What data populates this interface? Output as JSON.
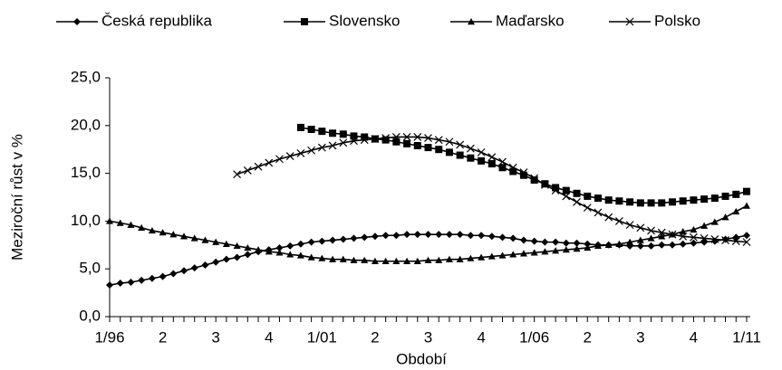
{
  "chart_data": {
    "type": "line",
    "x_label": "Období",
    "y_label": "Meziroční růst v %",
    "categories": [
      "1/96",
      null,
      null,
      null,
      null,
      "2",
      null,
      null,
      null,
      null,
      "3",
      null,
      null,
      null,
      null,
      "4",
      null,
      null,
      null,
      null,
      "1/01",
      null,
      null,
      null,
      null,
      "2",
      null,
      null,
      null,
      null,
      "3",
      null,
      null,
      null,
      null,
      "4",
      null,
      null,
      null,
      null,
      "1/06",
      null,
      null,
      null,
      null,
      "2",
      null,
      null,
      null,
      null,
      "3",
      null,
      null,
      null,
      null,
      "4",
      null,
      null,
      null,
      null,
      "1/11"
    ],
    "series": [
      {
        "name": "Česká republika",
        "color": "#000000",
        "marker": "diamond",
        "values": [
          3.3,
          3.5,
          3.6,
          3.8,
          4.0,
          4.2,
          4.5,
          4.8,
          5.1,
          5.4,
          5.7,
          6.0,
          6.2,
          6.5,
          6.8,
          7.0,
          7.2,
          7.4,
          7.6,
          7.8,
          7.9,
          8.0,
          8.1,
          8.2,
          8.3,
          8.4,
          8.5,
          8.5,
          8.6,
          8.6,
          8.6,
          8.6,
          8.6,
          8.6,
          8.5,
          8.5,
          8.4,
          8.3,
          8.2,
          8.0,
          7.9,
          7.8,
          7.8,
          7.7,
          7.7,
          7.6,
          7.5,
          7.5,
          7.5,
          7.4,
          7.4,
          7.4,
          7.5,
          7.5,
          7.6,
          7.7,
          7.8,
          7.9,
          8.1,
          8.3,
          8.5
        ]
      },
      {
        "name": "Slovensko",
        "color": "#000000",
        "marker": "square",
        "values": [
          null,
          null,
          null,
          null,
          null,
          null,
          null,
          null,
          null,
          null,
          null,
          null,
          null,
          null,
          null,
          null,
          null,
          null,
          19.8,
          19.6,
          19.4,
          19.2,
          19.1,
          18.9,
          18.8,
          18.6,
          18.5,
          18.3,
          18.1,
          17.9,
          17.7,
          17.5,
          17.2,
          16.9,
          16.6,
          16.3,
          16.0,
          15.6,
          15.2,
          14.8,
          14.3,
          13.9,
          13.5,
          13.2,
          12.9,
          12.6,
          12.4,
          12.2,
          12.1,
          12.0,
          11.9,
          11.9,
          11.9,
          12.0,
          12.1,
          12.2,
          12.3,
          12.4,
          12.6,
          12.8,
          13.1
        ]
      },
      {
        "name": "Maďarsko",
        "color": "#000000",
        "marker": "triangle",
        "values": [
          10.0,
          9.8,
          9.6,
          9.3,
          9.0,
          8.8,
          8.6,
          8.4,
          8.2,
          8.0,
          7.8,
          7.6,
          7.4,
          7.2,
          7.0,
          6.8,
          6.7,
          6.5,
          6.4,
          6.2,
          6.1,
          6.0,
          6.0,
          5.9,
          5.9,
          5.8,
          5.8,
          5.8,
          5.8,
          5.8,
          5.9,
          5.9,
          6.0,
          6.0,
          6.1,
          6.2,
          6.3,
          6.4,
          6.5,
          6.6,
          6.7,
          6.8,
          6.9,
          7.0,
          7.1,
          7.2,
          7.4,
          7.5,
          7.6,
          7.8,
          8.0,
          8.2,
          8.4,
          8.6,
          8.9,
          9.1,
          9.5,
          9.9,
          10.4,
          11.0,
          11.6
        ]
      },
      {
        "name": "Polsko",
        "color": "#000000",
        "marker": "x",
        "values": [
          null,
          null,
          null,
          null,
          null,
          null,
          null,
          null,
          null,
          null,
          null,
          null,
          14.9,
          15.3,
          15.7,
          16.1,
          16.5,
          16.8,
          17.1,
          17.4,
          17.7,
          17.9,
          18.2,
          18.4,
          18.5,
          18.6,
          18.7,
          18.8,
          18.8,
          18.8,
          18.7,
          18.5,
          18.3,
          18.0,
          17.6,
          17.2,
          16.7,
          16.2,
          15.6,
          15.1,
          14.5,
          13.8,
          13.2,
          12.6,
          12.0,
          11.4,
          10.9,
          10.4,
          10.0,
          9.6,
          9.3,
          9.0,
          8.8,
          8.6,
          8.4,
          8.3,
          8.2,
          8.1,
          8.0,
          7.9,
          7.8
        ]
      }
    ],
    "ylim": [
      0,
      25
    ],
    "yticks": [
      {
        "value": 0,
        "label": "0,0"
      },
      {
        "value": 5,
        "label": "5,0"
      },
      {
        "value": 10,
        "label": "10,0"
      },
      {
        "value": 15,
        "label": "15,0"
      },
      {
        "value": 20,
        "label": "20,0"
      },
      {
        "value": 25,
        "label": "25,0"
      }
    ],
    "grid": false,
    "legend": "top"
  }
}
